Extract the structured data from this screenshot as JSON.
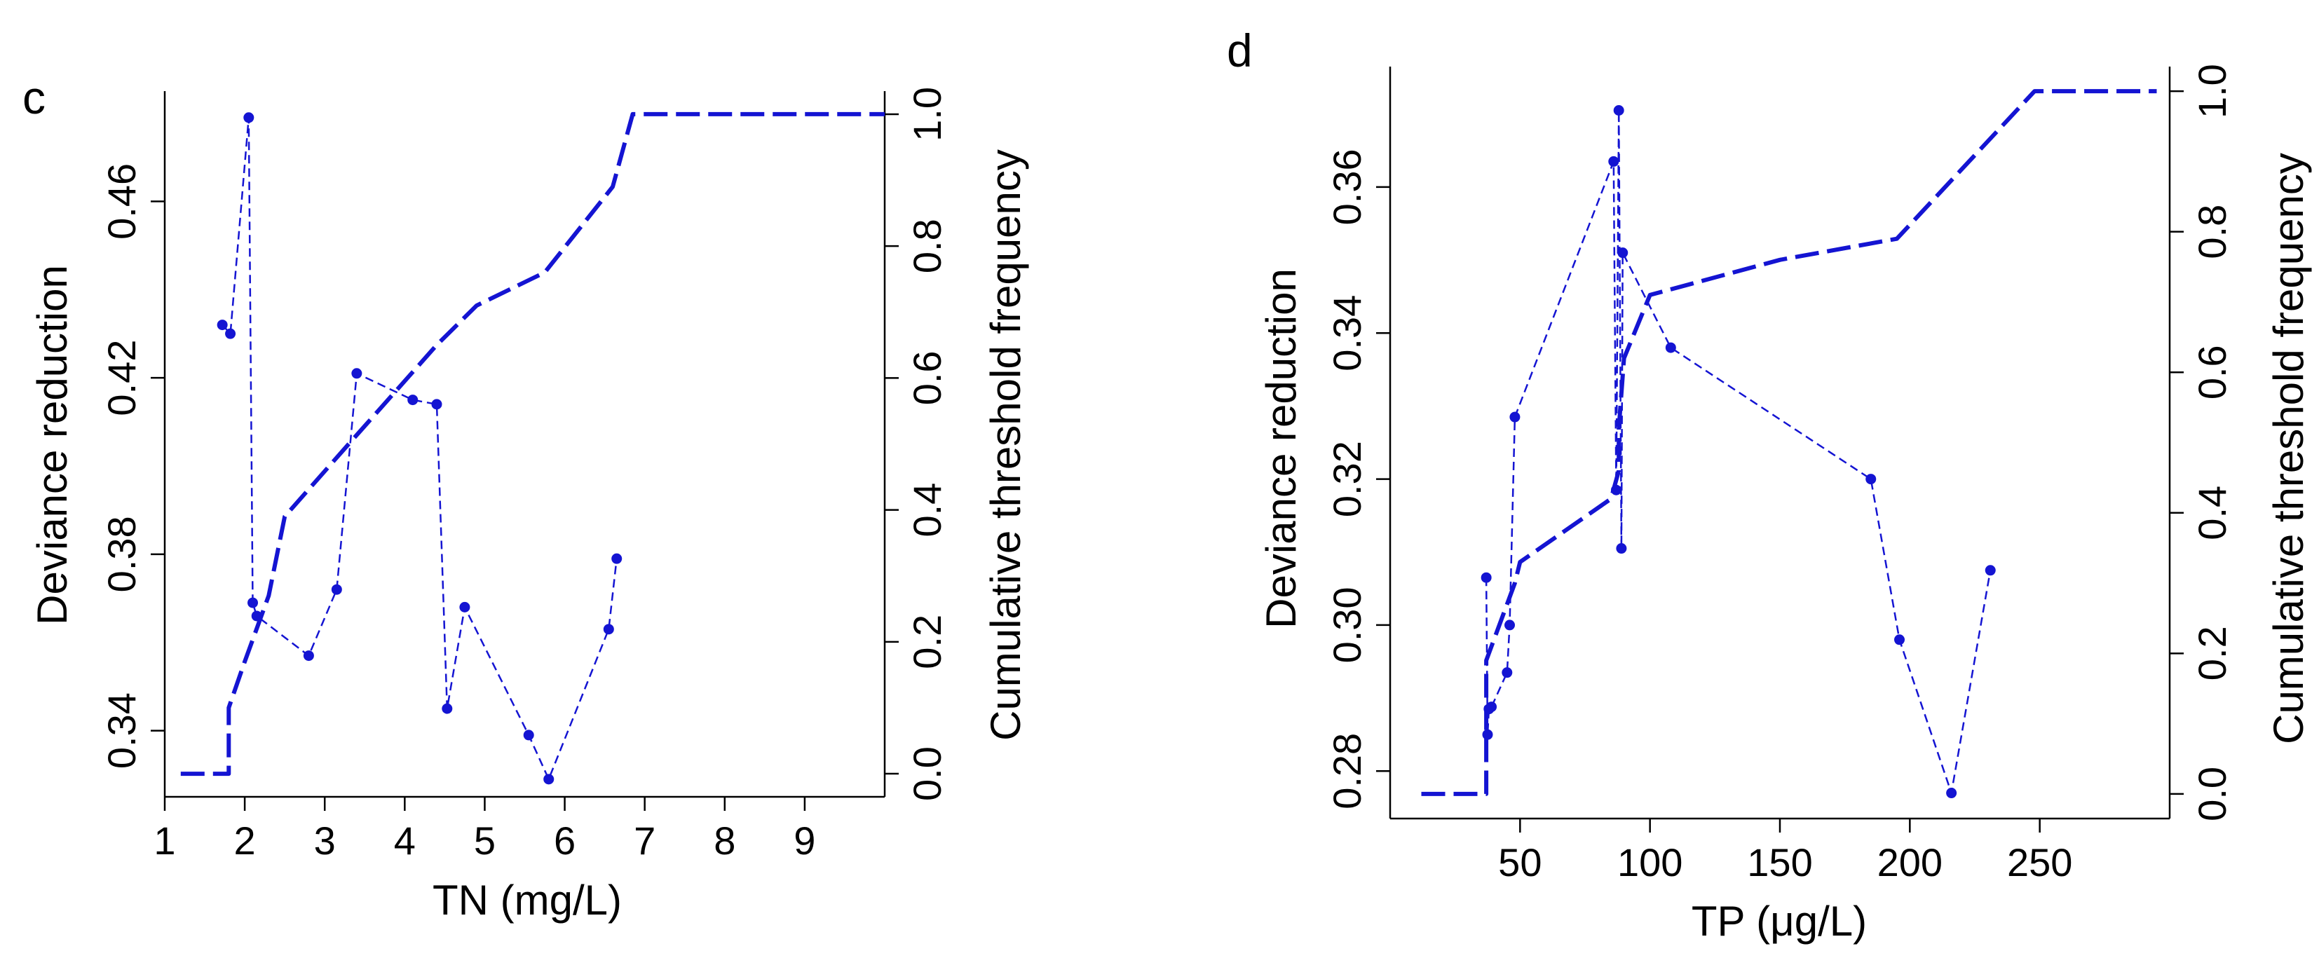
{
  "colors": {
    "series": "#1414d2",
    "axis": "#000000"
  },
  "chart_data": [
    {
      "type": "line",
      "panel_label": "c",
      "xlabel": "TN (mg/L)",
      "ylabel": "Deviance reduction",
      "y2label": "Cumulative threshold frequency",
      "xlim": [
        1.0,
        10.0
      ],
      "ylim": [
        0.325,
        0.485
      ],
      "y2lim": [
        -0.035,
        1.035
      ],
      "xticks": [
        "1",
        "2",
        "3",
        "4",
        "5",
        "6",
        "7",
        "8",
        "9"
      ],
      "yticks": [
        "0.34",
        "0.38",
        "0.42",
        "0.46"
      ],
      "y2ticks": [
        "0.0",
        "0.2",
        "0.4",
        "0.6",
        "0.8",
        "1.0"
      ],
      "grid": false,
      "series": [
        {
          "axis": "left",
          "style": "dashed-markers",
          "points": [
            {
              "x": 1.72,
              "y": 0.432
            },
            {
              "x": 1.82,
              "y": 0.43
            },
            {
              "x": 2.05,
              "y": 0.479
            },
            {
              "x": 2.1,
              "y": 0.369
            },
            {
              "x": 2.15,
              "y": 0.366
            },
            {
              "x": 2.8,
              "y": 0.357
            },
            {
              "x": 3.15,
              "y": 0.372
            },
            {
              "x": 3.4,
              "y": 0.421
            },
            {
              "x": 4.1,
              "y": 0.415
            },
            {
              "x": 4.4,
              "y": 0.414
            },
            {
              "x": 4.53,
              "y": 0.345
            },
            {
              "x": 4.75,
              "y": 0.368
            },
            {
              "x": 5.55,
              "y": 0.339
            },
            {
              "x": 5.8,
              "y": 0.329
            },
            {
              "x": 6.55,
              "y": 0.363
            },
            {
              "x": 6.65,
              "y": 0.379
            }
          ]
        },
        {
          "axis": "right",
          "style": "long-dash",
          "points": [
            {
              "x": 1.2,
              "y": 0.0
            },
            {
              "x": 1.8,
              "y": 0.0
            },
            {
              "x": 1.8,
              "y": 0.1
            },
            {
              "x": 2.0,
              "y": 0.17
            },
            {
              "x": 2.3,
              "y": 0.27
            },
            {
              "x": 2.5,
              "y": 0.39
            },
            {
              "x": 3.3,
              "y": 0.5
            },
            {
              "x": 4.4,
              "y": 0.65
            },
            {
              "x": 4.9,
              "y": 0.71
            },
            {
              "x": 5.75,
              "y": 0.76
            },
            {
              "x": 6.6,
              "y": 0.89
            },
            {
              "x": 6.85,
              "y": 1.0
            },
            {
              "x": 10.0,
              "y": 1.0
            }
          ]
        }
      ]
    },
    {
      "type": "line",
      "panel_label": "d",
      "xlabel": "TP (μg/L)",
      "ylabel": "Deviance reduction",
      "y2label": "Cumulative threshold frequency",
      "xlim": [
        0,
        300
      ],
      "ylim": [
        0.2735,
        0.3765
      ],
      "y2lim": [
        -0.035,
        1.035
      ],
      "xticks": [
        "50",
        "100",
        "150",
        "200",
        "250"
      ],
      "yticks": [
        "0.28",
        "0.30",
        "0.32",
        "0.34",
        "0.36"
      ],
      "y2ticks": [
        "0.0",
        "0.2",
        "0.4",
        "0.6",
        "0.8",
        "1.0"
      ],
      "grid": false,
      "series": [
        {
          "axis": "left",
          "style": "dashed-markers",
          "points": [
            {
              "x": 37,
              "y": 0.3065
            },
            {
              "x": 37.5,
              "y": 0.285
            },
            {
              "x": 38,
              "y": 0.2885
            },
            {
              "x": 39,
              "y": 0.2888
            },
            {
              "x": 45,
              "y": 0.2935
            },
            {
              "x": 46,
              "y": 0.3
            },
            {
              "x": 48,
              "y": 0.3285
            },
            {
              "x": 86,
              "y": 0.3635
            },
            {
              "x": 87,
              "y": 0.3185
            },
            {
              "x": 88,
              "y": 0.3705
            },
            {
              "x": 89,
              "y": 0.3105
            },
            {
              "x": 89.5,
              "y": 0.351
            },
            {
              "x": 108,
              "y": 0.338
            },
            {
              "x": 185,
              "y": 0.32
            },
            {
              "x": 196,
              "y": 0.298
            },
            {
              "x": 216,
              "y": 0.277
            },
            {
              "x": 231,
              "y": 0.3075
            }
          ]
        },
        {
          "axis": "right",
          "style": "long-dash",
          "points": [
            {
              "x": 12,
              "y": 0.0
            },
            {
              "x": 37,
              "y": 0.0
            },
            {
              "x": 37,
              "y": 0.19
            },
            {
              "x": 48,
              "y": 0.3
            },
            {
              "x": 50,
              "y": 0.33
            },
            {
              "x": 85,
              "y": 0.42
            },
            {
              "x": 88,
              "y": 0.46
            },
            {
              "x": 88,
              "y": 0.52
            },
            {
              "x": 90,
              "y": 0.62
            },
            {
              "x": 100,
              "y": 0.71
            },
            {
              "x": 150,
              "y": 0.76
            },
            {
              "x": 195,
              "y": 0.79
            },
            {
              "x": 248,
              "y": 1.0
            },
            {
              "x": 295,
              "y": 1.0
            }
          ]
        }
      ]
    }
  ]
}
